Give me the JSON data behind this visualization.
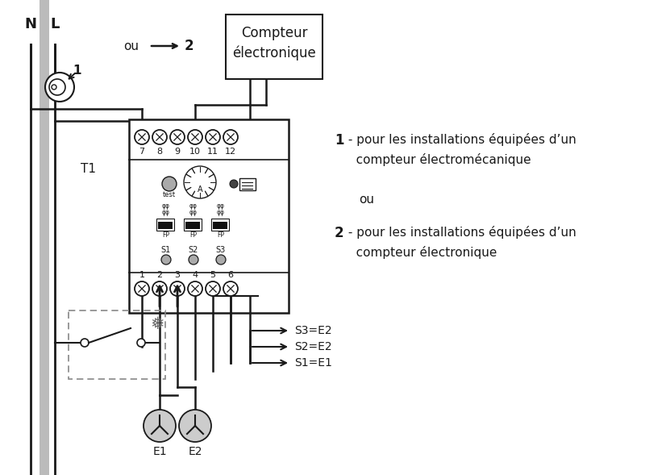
{
  "bg_color": "#ffffff",
  "line_color": "#1a1a1a",
  "gray_color": "#bbbbbb",
  "dash_color": "#888888",
  "figsize": [
    8.0,
    5.89
  ],
  "dpi": 100,
  "label_N": "N",
  "label_L": "L",
  "label_ou": "ou",
  "label_T1": "T1",
  "label_1": "1",
  "label_2": "2",
  "compteur_line1": "Compteur",
  "compteur_line2": "électronique",
  "top_terminals": [
    "7",
    "8",
    "9",
    "10",
    "11",
    "12"
  ],
  "bottom_terminals": [
    "1",
    "2",
    "3",
    "4",
    "5",
    "6"
  ],
  "s_labels": [
    "S1",
    "S2",
    "S3"
  ],
  "e_labels": [
    "E1",
    "E2"
  ],
  "s_eq": [
    "S3=E2",
    "S2=E2",
    "S1=E1"
  ],
  "ann1_num": "1",
  "ann1_line1": " - pour les installations équipées d’un",
  "ann1_line2": "   compteur électromécanique",
  "ann_ou": "ou",
  "ann2_num": "2",
  "ann2_line1": " - pour les installations équipées d’un",
  "ann2_line2": "   compteur électronique"
}
